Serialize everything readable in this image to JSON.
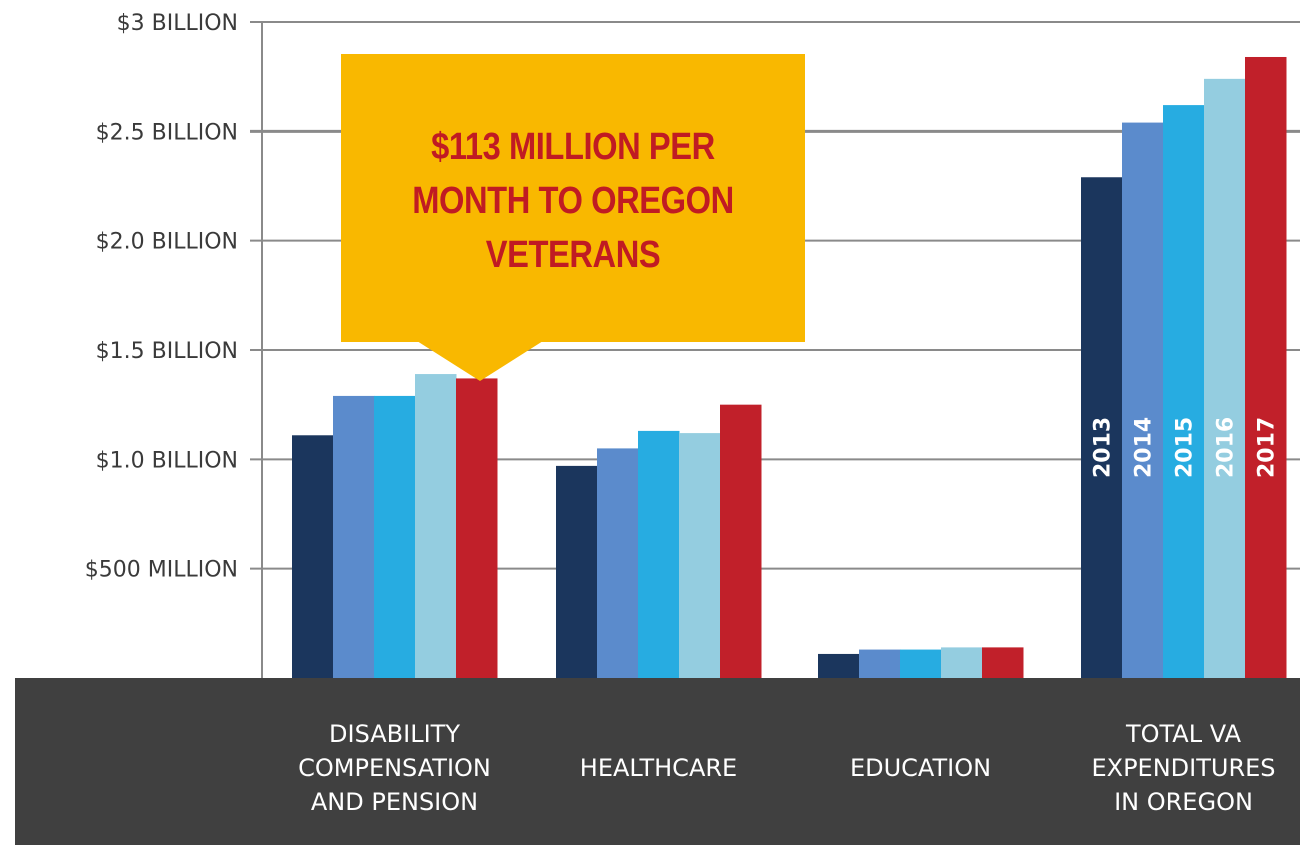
{
  "colors": {
    "2013": "#1b365d",
    "2014": "#5b8bcc",
    "2015": "#27ace1",
    "2016": "#94cde0",
    "2017": "#c1202a",
    "category_band": "#404040",
    "grid": "#8a8a8a",
    "callout_fill": "#f9b800",
    "callout_text": "#c01b23"
  },
  "callout": {
    "text": "$113 MILLION PER MONTH TO OREGON VETERANS",
    "points_to": "DISABILITY COMPENSATION AND PENSION / 2017"
  },
  "chart_data": {
    "type": "bar",
    "title": "",
    "xlabel": "",
    "ylabel": "",
    "ylim": [
      0,
      3000000000
    ],
    "grid": true,
    "legend": "year labels written vertically on bars of TOTAL VA EXPENDITURES IN OREGON",
    "yticks": [
      {
        "value": 500000000,
        "label": "$500 MILLION"
      },
      {
        "value": 1000000000,
        "label": "$1.0 BILLION"
      },
      {
        "value": 1500000000,
        "label": "$1.5 BILLION"
      },
      {
        "value": 2000000000,
        "label": "$2.0 BILLION"
      },
      {
        "value": 2500000000,
        "label": "$2.5 BILLION"
      },
      {
        "value": 3000000000,
        "label": "$3 BILLION"
      }
    ],
    "categories": [
      [
        "DISABILITY",
        "COMPENSATION",
        "AND PENSION"
      ],
      [
        "HEALTHCARE"
      ],
      [
        "EDUCATION"
      ],
      [
        "TOTAL VA",
        "EXPENDITURES",
        "IN OREGON"
      ]
    ],
    "series": [
      {
        "name": "2013",
        "values": [
          1110000000,
          970000000,
          110000000,
          2290000000
        ]
      },
      {
        "name": "2014",
        "values": [
          1290000000,
          1050000000,
          130000000,
          2540000000
        ]
      },
      {
        "name": "2015",
        "values": [
          1290000000,
          1130000000,
          130000000,
          2620000000
        ]
      },
      {
        "name": "2016",
        "values": [
          1390000000,
          1120000000,
          140000000,
          2740000000
        ]
      },
      {
        "name": "2017",
        "values": [
          1370000000,
          1250000000,
          140000000,
          2840000000
        ]
      }
    ]
  }
}
